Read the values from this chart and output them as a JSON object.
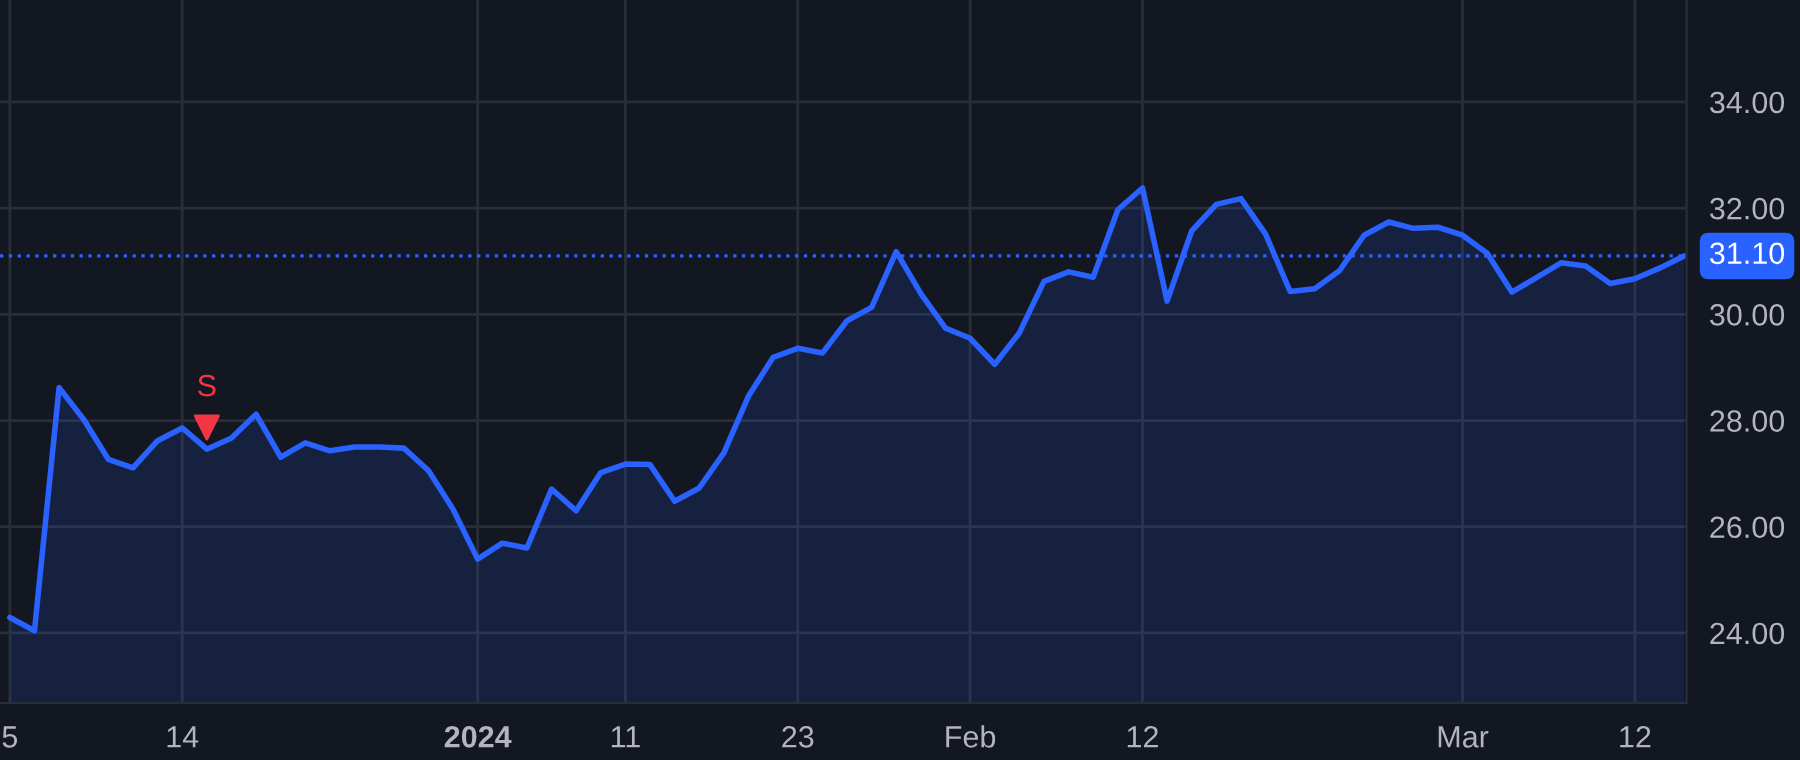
{
  "chart_data": {
    "type": "area",
    "categories": [
      "5",
      null,
      null,
      null,
      null,
      null,
      null,
      "14",
      null,
      null,
      null,
      null,
      null,
      null,
      null,
      null,
      null,
      null,
      null,
      "2024",
      null,
      null,
      null,
      null,
      null,
      "11",
      null,
      null,
      null,
      null,
      null,
      null,
      "23",
      null,
      null,
      null,
      null,
      null,
      null,
      "Feb",
      null,
      null,
      null,
      null,
      null,
      null,
      "12",
      null,
      null,
      null,
      null,
      null,
      null,
      null,
      null,
      null,
      null,
      null,
      null,
      "Mar",
      null,
      null,
      null,
      null,
      null,
      null,
      "12",
      null,
      null
    ],
    "series": [
      {
        "color": "#2962ff",
        "values": [
          24.29,
          24.04,
          28.62,
          28.02,
          27.27,
          27.11,
          27.62,
          27.86,
          27.46,
          27.67,
          28.12,
          27.31,
          27.58,
          27.43,
          27.5,
          27.5,
          27.48,
          27.06,
          26.33,
          25.39,
          25.69,
          25.6,
          26.71,
          26.3,
          27.02,
          27.18,
          27.17,
          26.48,
          26.73,
          27.39,
          28.46,
          29.19,
          29.36,
          29.27,
          29.88,
          30.13,
          31.18,
          30.39,
          29.74,
          29.55,
          29.06,
          29.65,
          30.62,
          30.8,
          30.7,
          31.97,
          32.38,
          30.25,
          31.57,
          32.07,
          32.18,
          31.51,
          30.43,
          30.48,
          30.82,
          31.49,
          31.74,
          31.62,
          31.64,
          31.49,
          31.15,
          30.42,
          30.69,
          30.97,
          30.91,
          30.58,
          30.67,
          30.87,
          31.1
        ]
      },
      {
        "type": "scatter",
        "color": "#f23645",
        "marker": "triangle",
        "values": [
          null,
          null,
          null,
          null,
          null,
          null,
          null,
          null,
          27.87,
          null,
          null,
          null,
          null,
          null,
          null,
          null,
          null,
          null,
          null,
          null,
          null,
          null,
          null,
          null,
          null,
          null,
          null,
          null,
          null,
          null,
          null,
          null,
          null,
          null,
          null,
          null,
          null,
          null,
          null,
          null,
          null,
          null,
          null,
          null,
          null,
          null,
          null,
          null,
          null,
          null,
          null,
          null,
          null,
          null,
          null,
          null,
          null,
          null,
          null,
          null,
          null,
          null,
          null,
          null,
          null,
          null,
          null,
          null,
          null
        ]
      }
    ],
    "annotations": [
      "S"
    ],
    "ref_lines": [
      {
        "axis": "y",
        "value": 31.1,
        "label": "31.10",
        "color": "#2962ff",
        "line_style": "dotted"
      }
    ],
    "ylim": [
      22.68,
      35.92
    ],
    "yticks": [
      {
        "value": 24,
        "label": "24.00"
      },
      {
        "value": 26,
        "label": "26.00"
      },
      {
        "value": 28,
        "label": "28.00"
      },
      {
        "value": 30,
        "label": "30.00"
      },
      {
        "value": 32,
        "label": "32.00"
      },
      {
        "value": 34,
        "label": "34.00"
      }
    ],
    "grid": true
  }
}
